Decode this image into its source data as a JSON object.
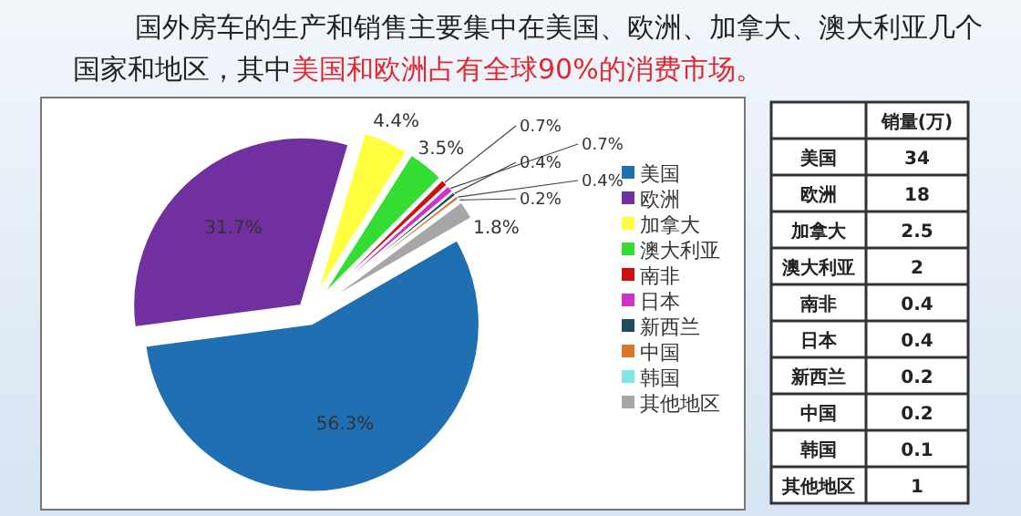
{
  "chart_data": [
    {
      "type": "pie",
      "title": "国外房车的生产和销售主要集中在美国、欧洲、加拿大、澳大利亚几个国家和地区，其中",
      "subtitle": "美国和欧洲占有全球90%的消费市场。",
      "categories": [
        "美国",
        "欧洲",
        "加拿大",
        "澳大利亚",
        "南非",
        "日本",
        "新西兰",
        "中国",
        "韩国",
        "其他地区"
      ],
      "values": [
        56.3,
        31.7,
        4.4,
        3.5,
        0.7,
        0.7,
        0.4,
        0.4,
        0.2,
        1.8
      ],
      "colors": [
        "#1f6fb2",
        "#7030a0",
        "#ffff40",
        "#33dd33",
        "#cc1111",
        "#cc33cc",
        "#1f4e5f",
        "#d9772b",
        "#80e6e6",
        "#a6a6a6"
      ],
      "value_labels": [
        "56.3%",
        "31.7%",
        "4.4%",
        "3.5%",
        "0.7%",
        "0.7%",
        "0.4%",
        "0.4%",
        "0.2%",
        "1.8%"
      ],
      "legend": "right"
    },
    {
      "type": "other",
      "title": "销量(万)",
      "categories": [
        "美国",
        "欧洲",
        "加拿大",
        "澳大利亚",
        "南非",
        "日本",
        "新西兰",
        "中国",
        "韩国",
        "其他地区"
      ],
      "values": [
        34,
        18,
        2.5,
        2,
        0.4,
        0.4,
        0.2,
        0.2,
        0.1,
        1
      ],
      "value_labels": [
        "34",
        "18",
        "2.5",
        "2",
        "0.4",
        "0.4",
        "0.2",
        "0.2",
        "0.1",
        "1"
      ]
    }
  ]
}
